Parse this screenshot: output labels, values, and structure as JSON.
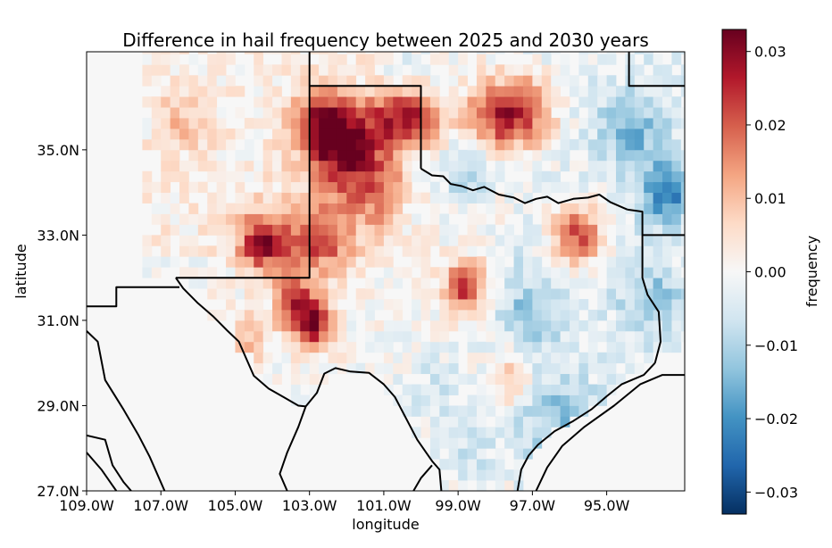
{
  "chart_data": {
    "type": "heatmap",
    "title": "Difference in hail frequency between 2025 and 2030 years",
    "xlabel": "longitude",
    "ylabel": "latitude",
    "xlim": [
      -109.0,
      -92.9
    ],
    "ylim": [
      27.0,
      37.3
    ],
    "x_ticks": [
      {
        "value": -109.0,
        "label": "109.0W"
      },
      {
        "value": -107.0,
        "label": "107.0W"
      },
      {
        "value": -105.0,
        "label": "105.0W"
      },
      {
        "value": -103.0,
        "label": "103.0W"
      },
      {
        "value": -101.0,
        "label": "101.0W"
      },
      {
        "value": -99.0,
        "label": "99.0W"
      },
      {
        "value": -97.0,
        "label": "97.0W"
      },
      {
        "value": -95.0,
        "label": "95.0W"
      }
    ],
    "y_ticks": [
      {
        "value": 27.0,
        "label": "27.0N"
      },
      {
        "value": 29.0,
        "label": "29.0N"
      },
      {
        "value": 31.0,
        "label": "31.0N"
      },
      {
        "value": 33.0,
        "label": "33.0N"
      },
      {
        "value": 35.0,
        "label": "35.0N"
      }
    ],
    "colorbar": {
      "label": "frequency",
      "range": [
        -0.033,
        0.033
      ],
      "colormap": "RdBu_r",
      "ticks": [
        {
          "value": 0.03,
          "label": "0.03"
        },
        {
          "value": 0.02,
          "label": "0.02"
        },
        {
          "value": 0.01,
          "label": "0.01"
        },
        {
          "value": 0.0,
          "label": "0.00"
        },
        {
          "value": -0.01,
          "label": "−0.01"
        },
        {
          "value": -0.02,
          "label": "−0.02"
        },
        {
          "value": -0.03,
          "label": "−0.03"
        }
      ]
    },
    "grid": false,
    "grid_resolution_deg": 0.25,
    "hotspots": [
      {
        "lon": -102.0,
        "lat": 35.1,
        "value": 0.03,
        "radius_deg": 0.7
      },
      {
        "lon": -102.7,
        "lat": 35.6,
        "value": 0.02,
        "radius_deg": 0.5
      },
      {
        "lon": -100.6,
        "lat": 35.8,
        "value": 0.022,
        "radius_deg": 0.5
      },
      {
        "lon": -99.8,
        "lat": 35.7,
        "value": 0.015,
        "radius_deg": 0.4
      },
      {
        "lon": -97.3,
        "lat": 35.9,
        "value": 0.027,
        "radius_deg": 0.6
      },
      {
        "lon": -98.3,
        "lat": 35.7,
        "value": 0.014,
        "radius_deg": 0.5
      },
      {
        "lon": -104.2,
        "lat": 32.8,
        "value": 0.027,
        "radius_deg": 0.5
      },
      {
        "lon": -102.7,
        "lat": 32.9,
        "value": 0.02,
        "radius_deg": 0.6
      },
      {
        "lon": -103.4,
        "lat": 31.5,
        "value": 0.022,
        "radius_deg": 0.4
      },
      {
        "lon": -102.9,
        "lat": 30.9,
        "value": 0.028,
        "radius_deg": 0.4
      },
      {
        "lon": -98.8,
        "lat": 31.8,
        "value": 0.024,
        "radius_deg": 0.4
      },
      {
        "lon": -95.8,
        "lat": 33.0,
        "value": 0.024,
        "radius_deg": 0.5
      },
      {
        "lon": -104.6,
        "lat": 30.6,
        "value": 0.01,
        "radius_deg": 0.4
      },
      {
        "lon": -101.2,
        "lat": 33.9,
        "value": 0.012,
        "radius_deg": 0.6
      },
      {
        "lon": -97.5,
        "lat": 29.6,
        "value": 0.01,
        "radius_deg": 0.4
      },
      {
        "lon": -93.4,
        "lat": 34.0,
        "value": -0.02,
        "radius_deg": 0.5
      },
      {
        "lon": -94.3,
        "lat": 35.5,
        "value": -0.013,
        "radius_deg": 0.6
      },
      {
        "lon": -98.8,
        "lat": 34.5,
        "value": -0.011,
        "radius_deg": 0.5
      },
      {
        "lon": -97.2,
        "lat": 31.2,
        "value": -0.009,
        "radius_deg": 0.7
      },
      {
        "lon": -93.8,
        "lat": 31.5,
        "value": -0.01,
        "radius_deg": 0.6
      },
      {
        "lon": -96.3,
        "lat": 28.7,
        "value": -0.01,
        "radius_deg": 0.7
      },
      {
        "lon": -99.6,
        "lat": 29.4,
        "value": -0.006,
        "radius_deg": 0.6
      },
      {
        "lon": -98.5,
        "lat": 27.8,
        "value": -0.006,
        "radius_deg": 0.6
      },
      {
        "lon": -100.7,
        "lat": 36.8,
        "value": -0.007,
        "radius_deg": 0.4
      },
      {
        "lon": -107.6,
        "lat": 35.9,
        "value": -0.006,
        "radius_deg": 0.4
      },
      {
        "lon": -106.6,
        "lat": 35.6,
        "value": 0.008,
        "radius_deg": 0.5
      }
    ],
    "boundaries": [
      [
        [
          -103.0,
          37.3
        ],
        [
          -103.0,
          32.0
        ],
        [
          -106.6,
          32.0
        ]
      ],
      [
        [
          -103.0,
          36.5
        ],
        [
          -100.0,
          36.5
        ],
        [
          -100.0,
          34.56
        ]
      ],
      [
        [
          -94.4,
          37.3
        ],
        [
          -94.4,
          36.5
        ],
        [
          -92.9,
          36.5
        ]
      ],
      [
        [
          -94.05,
          33.0
        ],
        [
          -92.9,
          33.0
        ]
      ],
      [
        [
          -109.0,
          31.33
        ],
        [
          -108.2,
          31.33
        ],
        [
          -108.2,
          31.78
        ],
        [
          -106.5,
          31.78
        ]
      ],
      [
        [
          -94.45,
          33.6
        ],
        [
          -94.04,
          33.55
        ],
        [
          -94.04,
          32.0
        ],
        [
          -93.9,
          31.6
        ],
        [
          -93.6,
          31.2
        ],
        [
          -93.55,
          30.5
        ],
        [
          -93.7,
          30.0
        ]
      ],
      [
        [
          -100.0,
          34.56
        ],
        [
          -99.7,
          34.4
        ],
        [
          -99.4,
          34.38
        ],
        [
          -99.2,
          34.2
        ],
        [
          -98.9,
          34.15
        ],
        [
          -98.6,
          34.05
        ],
        [
          -98.3,
          34.13
        ],
        [
          -97.9,
          33.95
        ],
        [
          -97.5,
          33.88
        ],
        [
          -97.2,
          33.75
        ],
        [
          -96.9,
          33.85
        ],
        [
          -96.6,
          33.9
        ],
        [
          -96.3,
          33.75
        ],
        [
          -95.9,
          33.85
        ],
        [
          -95.5,
          33.88
        ],
        [
          -95.2,
          33.95
        ],
        [
          -94.9,
          33.77
        ],
        [
          -94.45,
          33.6
        ]
      ],
      [
        [
          -106.6,
          32.0
        ],
        [
          -106.4,
          31.75
        ],
        [
          -106.0,
          31.4
        ],
        [
          -105.6,
          31.1
        ],
        [
          -105.2,
          30.75
        ],
        [
          -104.9,
          30.5
        ],
        [
          -104.7,
          30.1
        ],
        [
          -104.5,
          29.7
        ],
        [
          -104.1,
          29.4
        ],
        [
          -103.7,
          29.2
        ],
        [
          -103.3,
          29.0
        ],
        [
          -103.1,
          28.98
        ],
        [
          -102.8,
          29.3
        ],
        [
          -102.6,
          29.75
        ],
        [
          -102.3,
          29.88
        ],
        [
          -101.9,
          29.8
        ],
        [
          -101.4,
          29.77
        ],
        [
          -101.0,
          29.5
        ],
        [
          -100.7,
          29.2
        ],
        [
          -100.4,
          28.7
        ],
        [
          -100.1,
          28.2
        ],
        [
          -99.7,
          27.7
        ],
        [
          -99.5,
          27.5
        ],
        [
          -99.45,
          27.0
        ]
      ],
      [
        [
          -93.7,
          30.0
        ],
        [
          -94.0,
          29.72
        ],
        [
          -94.6,
          29.5
        ],
        [
          -95.0,
          29.22
        ],
        [
          -95.4,
          28.92
        ],
        [
          -95.9,
          28.64
        ],
        [
          -96.4,
          28.4
        ],
        [
          -96.85,
          28.08
        ],
        [
          -97.1,
          27.83
        ],
        [
          -97.3,
          27.5
        ],
        [
          -97.4,
          27.0
        ]
      ],
      [
        [
          -96.9,
          27.0
        ],
        [
          -96.6,
          27.55
        ],
        [
          -96.2,
          28.05
        ],
        [
          -95.6,
          28.5
        ],
        [
          -94.8,
          29.0
        ],
        [
          -94.1,
          29.5
        ],
        [
          -93.5,
          29.72
        ],
        [
          -92.9,
          29.72
        ]
      ],
      [
        [
          -109.0,
          30.75
        ],
        [
          -108.7,
          30.5
        ],
        [
          -108.5,
          29.6
        ],
        [
          -108.0,
          28.9
        ],
        [
          -107.6,
          28.3
        ],
        [
          -107.3,
          27.8
        ],
        [
          -106.9,
          27.0
        ]
      ],
      [
        [
          -103.1,
          28.98
        ],
        [
          -103.3,
          28.5
        ],
        [
          -103.6,
          27.9
        ],
        [
          -103.8,
          27.4
        ],
        [
          -103.6,
          27.0
        ]
      ],
      [
        [
          -109.0,
          28.3
        ],
        [
          -108.5,
          28.2
        ],
        [
          -108.3,
          27.6
        ],
        [
          -108.0,
          27.2
        ],
        [
          -107.8,
          27.0
        ]
      ],
      [
        [
          -109.0,
          27.9
        ],
        [
          -108.6,
          27.5
        ],
        [
          -108.2,
          27.0
        ]
      ],
      [
        [
          -100.2,
          27.0
        ],
        [
          -100.0,
          27.3
        ],
        [
          -99.7,
          27.6
        ]
      ]
    ]
  }
}
